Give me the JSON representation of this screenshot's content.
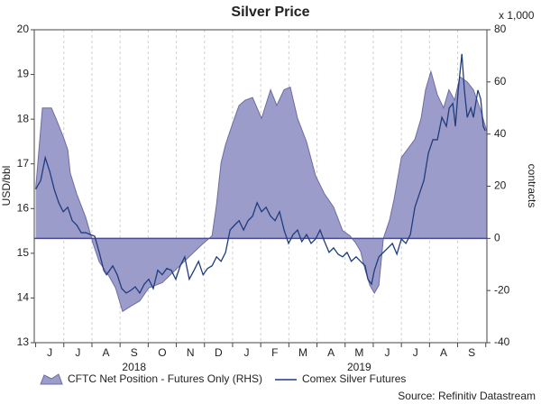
{
  "chart_data": {
    "type": "area-line",
    "title": "Silver Price",
    "y_label": "USD/bbl",
    "y2_label": "contracts",
    "y2_unit": "x 1,000",
    "source": "Source: Refinitiv Datastream",
    "years": [
      "2018",
      "2019"
    ],
    "xlim": [
      -0.05,
      16.04
    ],
    "xticks": [
      {
        "value": 0.5,
        "label": "J"
      },
      {
        "value": 1.5,
        "label": "J"
      },
      {
        "value": 2.5,
        "label": "A"
      },
      {
        "value": 3.5,
        "label": "S"
      },
      {
        "value": 4.5,
        "label": "O"
      },
      {
        "value": 5.5,
        "label": "N"
      },
      {
        "value": 6.5,
        "label": "D"
      },
      {
        "value": 7.5,
        "label": "J"
      },
      {
        "value": 8.5,
        "label": "F"
      },
      {
        "value": 9.5,
        "label": "M"
      },
      {
        "value": 10.5,
        "label": "A"
      },
      {
        "value": 11.5,
        "label": "M"
      },
      {
        "value": 12.5,
        "label": "J"
      },
      {
        "value": 13.5,
        "label": "J"
      },
      {
        "value": 14.5,
        "label": "A"
      },
      {
        "value": 15.5,
        "label": "S"
      }
    ],
    "ylim": [
      13,
      20
    ],
    "yticks": [
      13,
      14,
      15,
      16,
      17,
      18,
      19,
      20
    ],
    "y2lim": [
      -40,
      80
    ],
    "y2ticks": [
      -40,
      -20,
      0,
      20,
      40,
      60,
      80
    ],
    "grid": true,
    "legend": "bottom",
    "series": [
      {
        "name": "CFTC Net Position - Futures Only (RHS)",
        "type": "area",
        "axis": "y2",
        "color": "#9c9cca",
        "edge": "#6c6ca4",
        "x": [
          0,
          0.24,
          0.56,
          0.72,
          0.98,
          1.14,
          1.23,
          1.46,
          1.78,
          1.94,
          2.04,
          2.26,
          2.58,
          2.84,
          3.09,
          3.38,
          3.7,
          4.02,
          4.5,
          4.98,
          5.46,
          5.95,
          6.27,
          6.43,
          6.59,
          6.75,
          7.0,
          7.23,
          7.45,
          7.71,
          8.03,
          8.35,
          8.57,
          8.83,
          9.05,
          9.31,
          9.63,
          9.95,
          10.27,
          10.59,
          10.91,
          11.17,
          11.39,
          11.55,
          11.71,
          11.88,
          12.04,
          12.2,
          12.36,
          12.58,
          12.74,
          13.0,
          13.48,
          13.7,
          13.86,
          14.05,
          14.28,
          14.5,
          14.69,
          14.89,
          15.08,
          15.34,
          15.56,
          15.79,
          16.04
        ],
        "values": [
          19,
          50,
          50,
          46,
          39,
          34,
          25,
          17,
          8,
          2,
          -2,
          -9,
          -14,
          -19,
          -28,
          -26,
          -24,
          -19,
          -17,
          -12,
          -7,
          -2,
          1,
          13,
          29,
          36,
          44,
          51,
          53,
          54,
          46,
          57,
          51,
          57,
          58,
          46,
          37,
          24,
          17,
          12,
          3,
          1,
          -2,
          -5,
          -12,
          -18,
          -21,
          -18,
          0,
          7,
          15,
          31,
          38,
          46,
          57,
          64,
          55,
          50,
          57,
          53,
          62,
          60,
          57,
          50,
          41
        ]
      },
      {
        "name": "Comex Silver Futures",
        "type": "line",
        "axis": "y",
        "color": "#1f3c7e",
        "x": [
          0,
          0.18,
          0.34,
          0.5,
          0.66,
          0.82,
          0.98,
          1.14,
          1.3,
          1.46,
          1.62,
          1.78,
          1.94,
          2.1,
          2.26,
          2.42,
          2.52,
          2.74,
          2.9,
          3.06,
          3.22,
          3.38,
          3.54,
          3.7,
          3.86,
          4.02,
          4.18,
          4.34,
          4.5,
          4.66,
          4.82,
          4.98,
          5.14,
          5.3,
          5.46,
          5.63,
          5.79,
          5.95,
          6.11,
          6.27,
          6.43,
          6.59,
          6.75,
          6.91,
          7.07,
          7.23,
          7.39,
          7.55,
          7.71,
          7.87,
          8.03,
          8.19,
          8.35,
          8.51,
          8.67,
          8.83,
          8.99,
          9.15,
          9.31,
          9.46,
          9.63,
          9.79,
          9.95,
          10.11,
          10.27,
          10.43,
          10.59,
          10.75,
          10.91,
          11.07,
          11.22,
          11.39,
          11.55,
          11.71,
          11.81,
          11.94,
          12.04,
          12.2,
          12.36,
          12.52,
          12.68,
          12.84,
          13.0,
          13.16,
          13.32,
          13.48,
          13.64,
          13.8,
          13.96,
          14.12,
          14.28,
          14.44,
          14.6,
          14.7,
          14.83,
          14.92,
          15.02,
          15.15,
          15.24,
          15.34,
          15.47,
          15.56,
          15.72,
          15.82,
          15.91,
          15.98
        ],
        "values": [
          16.43,
          16.63,
          17.14,
          16.83,
          16.43,
          16.13,
          15.93,
          16.03,
          15.73,
          15.63,
          15.46,
          15.46,
          15.42,
          15.38,
          15.02,
          14.62,
          14.52,
          14.72,
          14.52,
          14.21,
          14.11,
          14.17,
          14.25,
          14.11,
          14.31,
          14.42,
          14.21,
          14.62,
          14.52,
          14.66,
          14.62,
          14.42,
          14.72,
          14.92,
          14.42,
          14.62,
          14.82,
          14.52,
          14.66,
          14.72,
          14.92,
          14.82,
          15.02,
          15.52,
          15.63,
          15.73,
          15.52,
          15.73,
          15.83,
          16.13,
          15.93,
          16.03,
          15.83,
          15.73,
          15.93,
          15.52,
          15.22,
          15.42,
          15.52,
          15.26,
          15.42,
          15.22,
          15.32,
          15.52,
          15.26,
          15.02,
          15.12,
          14.98,
          14.92,
          15.02,
          14.82,
          14.92,
          14.82,
          14.72,
          14.42,
          14.31,
          14.62,
          14.92,
          15.02,
          15.12,
          15.22,
          14.98,
          15.32,
          15.22,
          15.42,
          16.03,
          16.33,
          16.63,
          17.24,
          17.54,
          17.54,
          18.04,
          17.84,
          18.25,
          18.35,
          17.84,
          18.65,
          19.46,
          18.65,
          18.04,
          18.25,
          18.04,
          18.65,
          18.45,
          17.84,
          17.74
        ]
      }
    ]
  }
}
